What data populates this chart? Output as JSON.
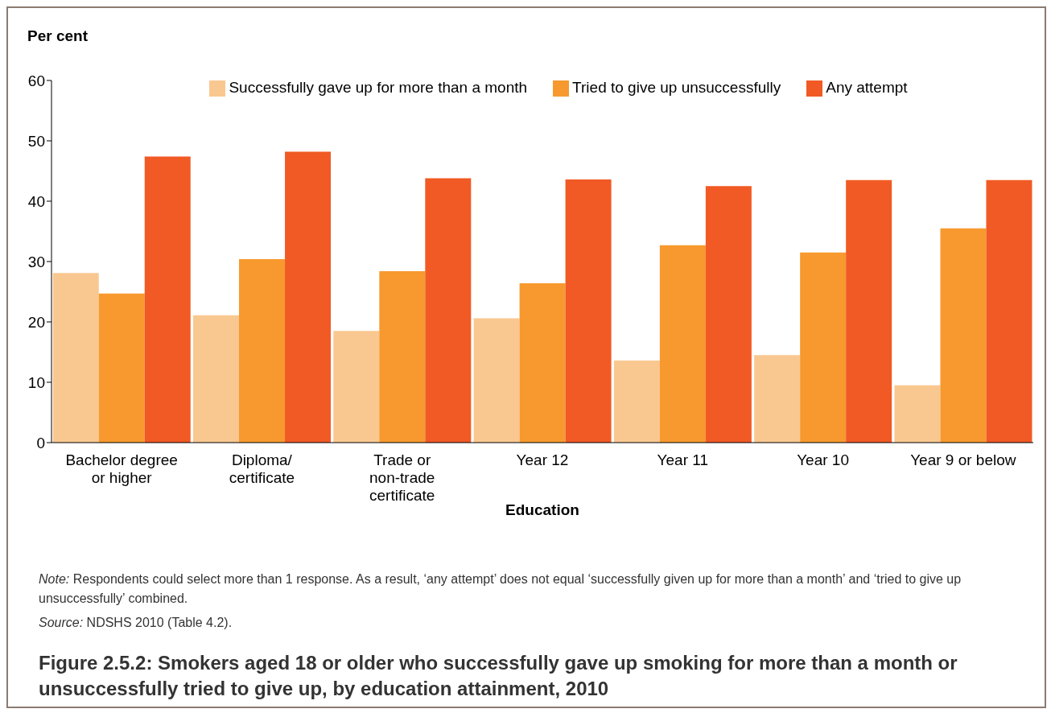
{
  "chart_data": {
    "type": "bar",
    "title": "Figure 2.5.2: Smokers aged 18 or older who successfully gave up smoking for more than a month or unsuccessfully tried to give up, by education attainment, 2010",
    "xlabel": "Education",
    "ylabel": "Per cent",
    "categories": [
      "Bachelor degree or higher",
      "Diploma/ certificate",
      "Trade or non-trade certificate",
      "Year 12",
      "Year 11",
      "Year 10",
      "Year 9 or below"
    ],
    "series": [
      {
        "name": "Successfully gave up for more than a month",
        "color": "#f9c890",
        "values": [
          28.1,
          21.1,
          18.5,
          20.6,
          13.6,
          14.5,
          9.5
        ]
      },
      {
        "name": "Tried to give up unsuccessfully",
        "color": "#f7992e",
        "values": [
          24.7,
          30.4,
          28.4,
          26.4,
          32.7,
          31.5,
          35.5
        ]
      },
      {
        "name": "Any attempt",
        "color": "#f15a24",
        "values": [
          47.4,
          48.2,
          43.8,
          43.6,
          42.5,
          43.5,
          43.5
        ]
      }
    ],
    "ylim": [
      0,
      60
    ],
    "yticks": [
      0,
      10,
      20,
      30,
      40,
      50,
      60
    ],
    "grid": false,
    "legend": "top",
    "annotations": [
      "Note: Respondents could select more than 1 response. As a result, ‘any attempt’ does not equal ‘successfully given up for more than a month’ and ‘tried to give up unsuccessfully’ combined.",
      "Source: NDSHS 2010 (Table 4.2)."
    ]
  }
}
